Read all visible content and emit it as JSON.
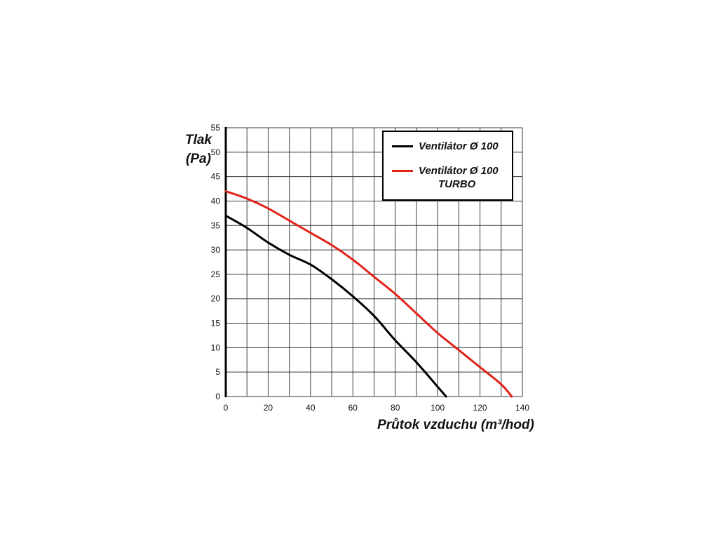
{
  "chart_data": {
    "type": "line",
    "title": "",
    "xlabel": "Průtok vzduchu (m³/hod)",
    "ylabel_lines": [
      "Tlak",
      "(Pa)"
    ],
    "xlim": [
      0,
      140
    ],
    "ylim": [
      0,
      55
    ],
    "x_ticks": [
      0,
      20,
      40,
      60,
      80,
      100,
      120,
      140
    ],
    "y_ticks": [
      0,
      5,
      10,
      15,
      20,
      25,
      30,
      35,
      40,
      45,
      50,
      55
    ],
    "x_grid_step": 10,
    "y_grid_step": 5,
    "grid": true,
    "legend_position": "top-right",
    "grid_color": "#3a3a3a",
    "series": [
      {
        "name": "Ventilátor Ø 100",
        "name_lines": [
          "Ventilátor Ø 100"
        ],
        "color": "#000000",
        "points": [
          [
            0,
            37
          ],
          [
            10,
            34.5
          ],
          [
            20,
            31.5
          ],
          [
            30,
            29
          ],
          [
            40,
            27
          ],
          [
            50,
            24
          ],
          [
            60,
            20.5
          ],
          [
            70,
            16.5
          ],
          [
            80,
            11.5
          ],
          [
            90,
            7
          ],
          [
            100,
            2
          ],
          [
            104,
            0
          ]
        ]
      },
      {
        "name": "Ventilátor Ø 100 TURBO",
        "name_lines": [
          "Ventilátor Ø 100",
          "TURBO"
        ],
        "color": "#e2231a",
        "points": [
          [
            0,
            42
          ],
          [
            10,
            40.5
          ],
          [
            20,
            38.5
          ],
          [
            30,
            36
          ],
          [
            40,
            33.5
          ],
          [
            50,
            31
          ],
          [
            60,
            28
          ],
          [
            70,
            24.5
          ],
          [
            80,
            21
          ],
          [
            90,
            17
          ],
          [
            100,
            13
          ],
          [
            110,
            9.5
          ],
          [
            120,
            6
          ],
          [
            130,
            2.5
          ],
          [
            135,
            0
          ]
        ]
      }
    ]
  }
}
